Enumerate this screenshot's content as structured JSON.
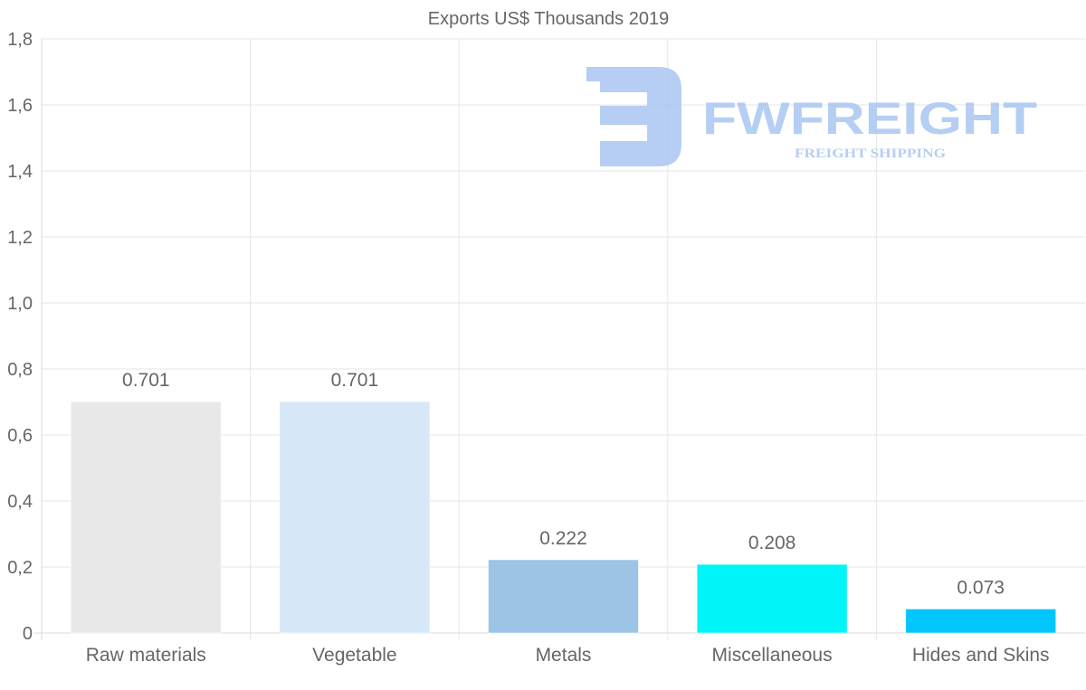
{
  "chart_data": {
    "type": "bar",
    "title": "Exports US$ Thousands 2019",
    "categories": [
      "Raw materials",
      "Vegetable",
      "Metals",
      "Miscellaneous",
      "Hides and Skins"
    ],
    "values": [
      0.701,
      0.701,
      0.222,
      0.208,
      0.073
    ],
    "value_labels": [
      "0.701",
      "0.701",
      "0.222",
      "0.208",
      "0.073"
    ],
    "bar_colors": [
      "#e8e8e8",
      "#d6e7f8",
      "#9dc3e6",
      "#00f5f8",
      "#00c6fb"
    ],
    "ylim": [
      0,
      1.8
    ],
    "yticks": [
      0,
      0.2,
      0.4,
      0.6,
      0.8,
      1.0,
      1.2,
      1.4,
      1.6,
      1.8
    ],
    "ytick_labels": [
      "0",
      "0,2",
      "0,4",
      "0,6",
      "0,8",
      "1,0",
      "1,2",
      "1,4",
      "1,6",
      "1,8"
    ],
    "grid": true,
    "xlabel": "",
    "ylabel": ""
  },
  "watermark": {
    "brand": "FWFREIGHT",
    "tagline": "FREIGHT SHIPPING",
    "color": "#a9c6f2"
  }
}
